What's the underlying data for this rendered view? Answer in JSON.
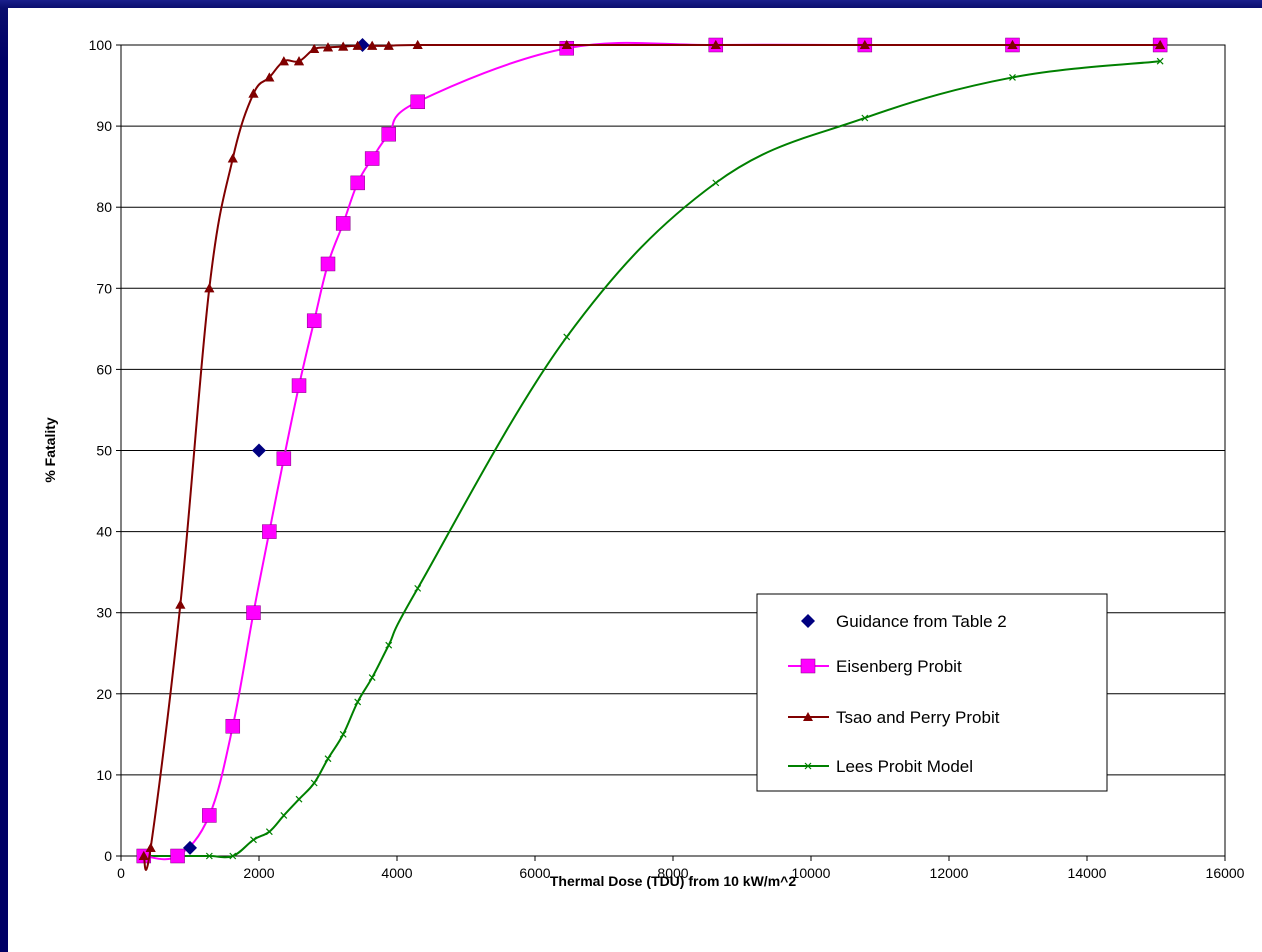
{
  "chart_data": {
    "type": "line",
    "title": "",
    "xlabel": "Thermal Dose (TDU) from 10 kW/m^2",
    "ylabel": "% Fatality",
    "xlim": [
      0,
      16000
    ],
    "ylim": [
      0,
      100
    ],
    "x_ticks": [
      0,
      2000,
      4000,
      6000,
      8000,
      10000,
      12000,
      14000,
      16000
    ],
    "y_ticks": [
      0,
      10,
      20,
      30,
      40,
      50,
      60,
      70,
      80,
      90,
      100
    ],
    "grid": "horizontal",
    "legend_position": "bottom-right",
    "series": [
      {
        "name": "Guidance from Table 2",
        "color": "#000080",
        "marker": "diamond",
        "line": false,
        "x": [
          1000,
          2000,
          3500
        ],
        "y": [
          1,
          50,
          100
        ]
      },
      {
        "name": "Eisenberg Probit",
        "color": "#ff00ff",
        "marker": "square",
        "line": true,
        "x": [
          330,
          820,
          1280,
          1620,
          1920,
          2150,
          2360,
          2580,
          2800,
          3000,
          3220,
          3430,
          3640,
          3880,
          4300,
          6460,
          8620,
          10780,
          12920,
          15060
        ],
        "y": [
          0,
          0,
          5,
          16,
          30,
          40,
          49,
          58,
          66,
          73,
          78,
          83,
          86,
          89,
          93,
          99.6,
          100,
          100,
          100,
          100
        ]
      },
      {
        "name": "Tsao and Perry Probit",
        "color": "#800000",
        "marker": "triangle",
        "line": true,
        "x": [
          330,
          430,
          860,
          1280,
          1620,
          1920,
          2150,
          2360,
          2580,
          2800,
          3000,
          3220,
          3430,
          3640,
          3880,
          4300,
          6460,
          8620,
          10780,
          12920,
          15060
        ],
        "y": [
          0,
          1,
          31,
          70,
          86,
          94,
          96,
          98,
          98,
          99.5,
          99.7,
          99.8,
          99.9,
          99.9,
          99.9,
          100,
          100,
          100,
          100,
          100,
          100
        ]
      },
      {
        "name": "Lees Probit Model",
        "color": "#008000",
        "marker": "x",
        "line": true,
        "x": [
          330,
          820,
          1280,
          1620,
          1920,
          2150,
          2360,
          2580,
          2800,
          3000,
          3220,
          3430,
          3640,
          3880,
          4300,
          6460,
          8620,
          10780,
          12920,
          15060
        ],
        "y": [
          0,
          0,
          0,
          0,
          2,
          3,
          5,
          7,
          9,
          12,
          15,
          19,
          22,
          26,
          33,
          64,
          83,
          91,
          96,
          98
        ]
      }
    ]
  }
}
